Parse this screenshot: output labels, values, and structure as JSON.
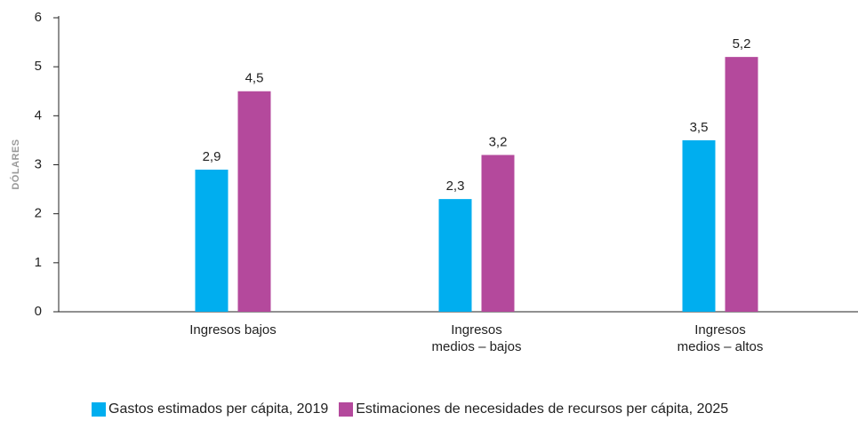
{
  "chart_data": {
    "type": "bar",
    "y_label": "DÓLARES",
    "categories": [
      "Ingresos bajos",
      "Ingresos\nmedios – bajos",
      "Ingresos\nmedios – altos"
    ],
    "series": [
      {
        "name": "Gastos estimados per cápita, 2019",
        "color": "#00aeef",
        "values": [
          2.9,
          2.3,
          3.5
        ],
        "value_labels": [
          "2,9",
          "2,3",
          "3,5"
        ]
      },
      {
        "name": "Estimaciones de necesidades de recursos per cápita, 2025",
        "color": "#b4499c",
        "values": [
          4.5,
          3.2,
          5.2
        ],
        "value_labels": [
          "4,5",
          "3,2",
          "5,2"
        ]
      }
    ],
    "ylim": [
      0,
      6
    ],
    "yticks": [
      0,
      1,
      2,
      3,
      4,
      5,
      6
    ],
    "grid": false
  }
}
